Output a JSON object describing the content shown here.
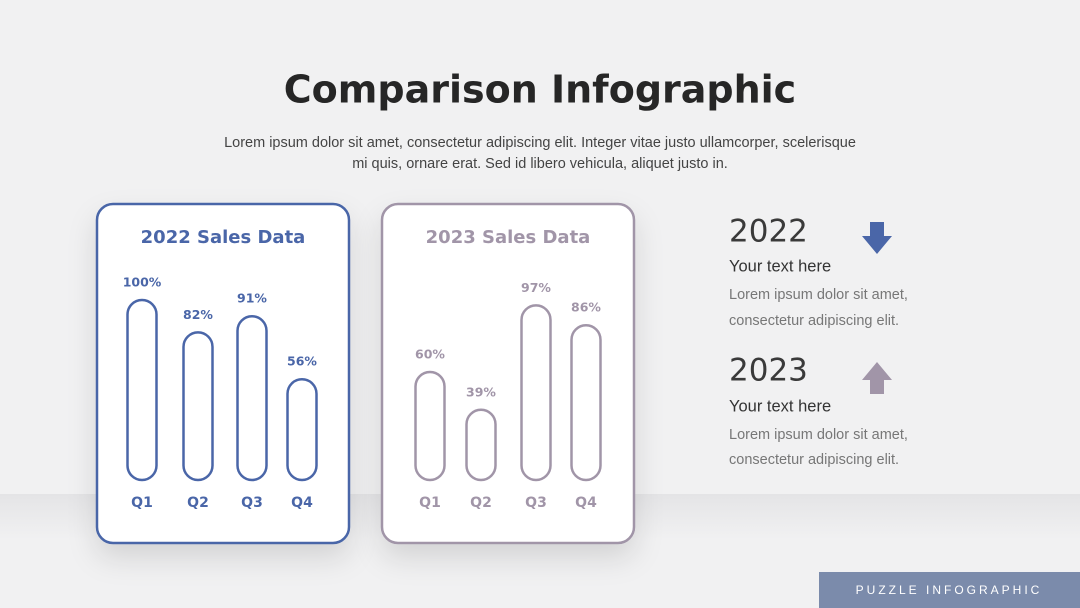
{
  "header": {
    "title": "Comparison Infographic",
    "text": [
      "Lorem ipsum dolor sit amet, consectetur adipiscing elit. Integer vitae justo ullamcorper, scelerisque",
      "mi quis, ornare erat. Sed id libero vehicula, aliquet justo in."
    ]
  },
  "chart_data": [
    {
      "type": "bar",
      "title": "2022 Sales Data",
      "categories": [
        "Q1",
        "Q2",
        "Q3",
        "Q4"
      ],
      "values": [
        100,
        82,
        91,
        56
      ],
      "value_labels": [
        "100%",
        "82%",
        "91%",
        "56%"
      ],
      "color": "#4a66a8"
    },
    {
      "type": "bar",
      "title": "2023 Sales Data",
      "categories": [
        "Q1",
        "Q2",
        "Q3",
        "Q4"
      ],
      "values": [
        60,
        39,
        97,
        86
      ],
      "value_labels": [
        "60%",
        "39%",
        "97%",
        "86%"
      ],
      "color": "#a195a8"
    }
  ],
  "side": {
    "items": [
      {
        "year": "2022",
        "heading": "Your text here",
        "text": [
          "Lorem ipsum dolor sit amet,",
          "consectetur adipiscing elit."
        ]
      },
      {
        "year": "2023",
        "heading": "Your text here",
        "text": [
          "Lorem ipsum dolor sit amet,",
          "consectetur adipiscing elit."
        ]
      }
    ]
  },
  "footer": {
    "label": "PUZZLE INFOGRAPHIC"
  }
}
